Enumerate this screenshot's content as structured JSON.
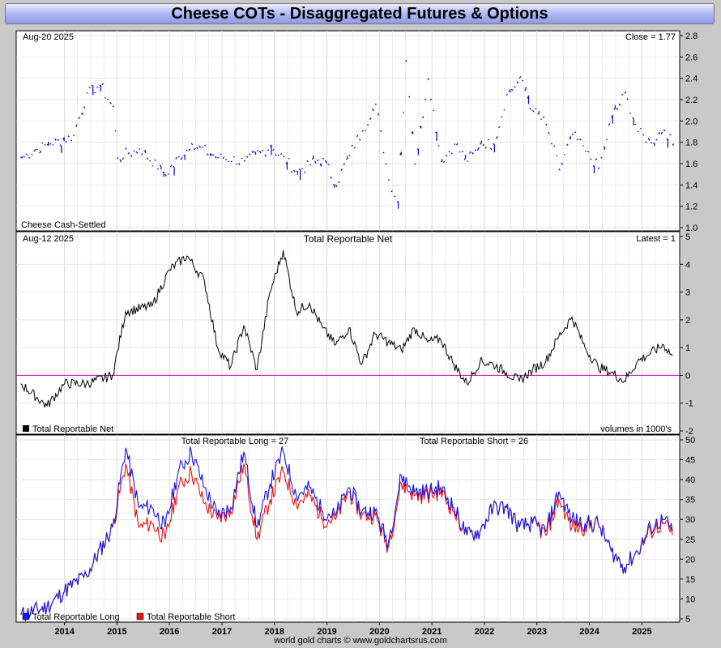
{
  "title": "Cheese COTs - Disaggregated Futures & Options",
  "footer": "world gold charts © www.goldchartsrus.com",
  "colors": {
    "bg": "#c9c9c9",
    "panel": "#ffffff",
    "grid": "#dcdcdc",
    "price": "#0000cc",
    "net": "#000000",
    "zero": "#cc00cc",
    "long": "#1414e6",
    "short": "#ee1111"
  },
  "chart_data": [
    {
      "type": "line",
      "name": "price",
      "date_label": "Aug-20  2025",
      "latest_label": "Close = 1.77",
      "series_label": "Cheese Cash-Settled",
      "ylim": [
        1.0,
        2.8
      ],
      "yticks": [
        "1.0",
        "1.2",
        "1.4",
        "1.6",
        "1.8",
        "2.0",
        "2.2",
        "2.4",
        "2.6",
        "2.8"
      ],
      "x": [
        "2013-03",
        "2013-09",
        "2014-03",
        "2014-06",
        "2014-09",
        "2014-12",
        "2015-01",
        "2015-06",
        "2015-12",
        "2016-06",
        "2016-12",
        "2017-06",
        "2017-12",
        "2018-06",
        "2018-12",
        "2019-03",
        "2019-06",
        "2019-09",
        "2019-12",
        "2020-03",
        "2020-05",
        "2020-07",
        "2020-09",
        "2020-12",
        "2021-03",
        "2021-06",
        "2021-09",
        "2021-12",
        "2022-03",
        "2022-06",
        "2022-09",
        "2022-12",
        "2023-03",
        "2023-06",
        "2023-09",
        "2023-12",
        "2024-03",
        "2024-06",
        "2024-09",
        "2024-12",
        "2025-03",
        "2025-06",
        "2025-08"
      ],
      "values": [
        1.66,
        1.78,
        1.86,
        2.26,
        2.33,
        2.13,
        1.65,
        1.74,
        1.5,
        1.79,
        1.66,
        1.62,
        1.76,
        1.53,
        1.65,
        1.4,
        1.68,
        1.91,
        2.16,
        1.45,
        1.24,
        2.57,
        1.6,
        2.4,
        1.62,
        1.78,
        1.62,
        1.78,
        1.79,
        2.24,
        2.4,
        2.1,
        1.96,
        1.55,
        1.88,
        1.72,
        1.55,
        2.03,
        2.26,
        1.9,
        1.8,
        1.92,
        1.77
      ]
    },
    {
      "type": "line",
      "name": "net",
      "date_label": "Aug-12  2025",
      "title": "Total Reportable Net",
      "latest_label": "Latest = 1",
      "series_label": "Total Reportable Net",
      "note": "volumes in 1000's",
      "ylim": [
        -2,
        5
      ],
      "yticks": [
        "-2",
        "-1",
        "0",
        "1",
        "2",
        "3",
        "4",
        "5"
      ],
      "x": [
        "2013-03",
        "2013-09",
        "2014-01",
        "2014-06",
        "2014-12",
        "2015-03",
        "2015-09",
        "2016-01",
        "2016-05",
        "2016-09",
        "2016-12",
        "2017-03",
        "2017-06",
        "2017-09",
        "2017-12",
        "2018-03",
        "2018-06",
        "2018-09",
        "2018-12",
        "2019-03",
        "2019-06",
        "2019-09",
        "2019-12",
        "2020-03",
        "2020-06",
        "2020-09",
        "2020-12",
        "2021-03",
        "2021-06",
        "2021-09",
        "2021-12",
        "2022-03",
        "2022-06",
        "2022-09",
        "2022-12",
        "2023-03",
        "2023-06",
        "2023-09",
        "2023-12",
        "2024-03",
        "2024-06",
        "2024-09",
        "2024-12",
        "2025-03",
        "2025-06",
        "2025-08"
      ],
      "values": [
        -0.3,
        -1.1,
        -0.3,
        -0.3,
        0.0,
        2.3,
        2.5,
        3.8,
        4.3,
        3.4,
        1.0,
        0.3,
        1.8,
        0.2,
        3.0,
        4.5,
        2.3,
        2.6,
        1.7,
        1.1,
        1.7,
        0.4,
        1.5,
        1.2,
        0.9,
        1.7,
        1.2,
        1.3,
        0.4,
        -0.3,
        0.5,
        0.4,
        0.1,
        -0.2,
        0.2,
        0.5,
        1.4,
        2.1,
        1.0,
        0.3,
        0.1,
        -0.2,
        0.5,
        0.8,
        1.1,
        0.7
      ]
    },
    {
      "type": "line",
      "name": "long-short",
      "title_long": "Total Reportable Long = 27",
      "title_short": "Total Reportable Short = 26",
      "ylim": [
        5,
        50
      ],
      "yticks": [
        "5",
        "10",
        "15",
        "20",
        "25",
        "30",
        "35",
        "40",
        "45",
        "50"
      ],
      "xticks": [
        "2014",
        "2015",
        "2016",
        "2017",
        "2018",
        "2019",
        "2020",
        "2021",
        "2022",
        "2023",
        "2024",
        "2025"
      ],
      "series": [
        {
          "name": "Total Reportable Long",
          "x": [
            "2013-03",
            "2013-09",
            "2014-01",
            "2014-06",
            "2014-12",
            "2015-03",
            "2015-06",
            "2015-09",
            "2015-12",
            "2016-03",
            "2016-06",
            "2016-09",
            "2016-12",
            "2017-03",
            "2017-06",
            "2017-09",
            "2017-12",
            "2018-03",
            "2018-06",
            "2018-09",
            "2018-12",
            "2019-03",
            "2019-06",
            "2019-09",
            "2019-12",
            "2020-03",
            "2020-06",
            "2020-09",
            "2020-12",
            "2021-03",
            "2021-06",
            "2021-09",
            "2021-12",
            "2022-03",
            "2022-06",
            "2022-09",
            "2022-12",
            "2023-03",
            "2023-06",
            "2023-09",
            "2023-12",
            "2024-03",
            "2024-06",
            "2024-09",
            "2024-12",
            "2025-03",
            "2025-06",
            "2025-08"
          ],
          "values": [
            6,
            8,
            12,
            16,
            28,
            48,
            33,
            33,
            28,
            42,
            47,
            38,
            31,
            33,
            47,
            28,
            39,
            47,
            36,
            38,
            32,
            31,
            38,
            32,
            32,
            24,
            41,
            37,
            37,
            38,
            33,
            26,
            27,
            33,
            33,
            28,
            29,
            27,
            37,
            30,
            29,
            29,
            22,
            18,
            22,
            28,
            30,
            27
          ]
        },
        {
          "name": "Total Reportable Short",
          "x": [
            "2013-03",
            "2013-09",
            "2014-01",
            "2014-06",
            "2014-12",
            "2015-03",
            "2015-06",
            "2015-09",
            "2015-12",
            "2016-03",
            "2016-06",
            "2016-09",
            "2016-12",
            "2017-03",
            "2017-06",
            "2017-09",
            "2017-12",
            "2018-03",
            "2018-06",
            "2018-09",
            "2018-12",
            "2019-03",
            "2019-06",
            "2019-09",
            "2019-12",
            "2020-03",
            "2020-06",
            "2020-09",
            "2020-12",
            "2021-03",
            "2021-06",
            "2021-09",
            "2021-12",
            "2022-03",
            "2022-06",
            "2022-09",
            "2022-12",
            "2023-03",
            "2023-06",
            "2023-09",
            "2023-12",
            "2024-03",
            "2024-06",
            "2024-09",
            "2024-12",
            "2025-03",
            "2025-06",
            "2025-08"
          ],
          "values": [
            6,
            8,
            12,
            16,
            28,
            44,
            28,
            29,
            25,
            38,
            42,
            34,
            30,
            32,
            44,
            25,
            35,
            42,
            34,
            36,
            30,
            30,
            37,
            31,
            31,
            23,
            39,
            36,
            36,
            37,
            32,
            26,
            27,
            33,
            33,
            28,
            29,
            26,
            35,
            28,
            28,
            29,
            22,
            18,
            22,
            27,
            29,
            26
          ]
        }
      ]
    }
  ]
}
